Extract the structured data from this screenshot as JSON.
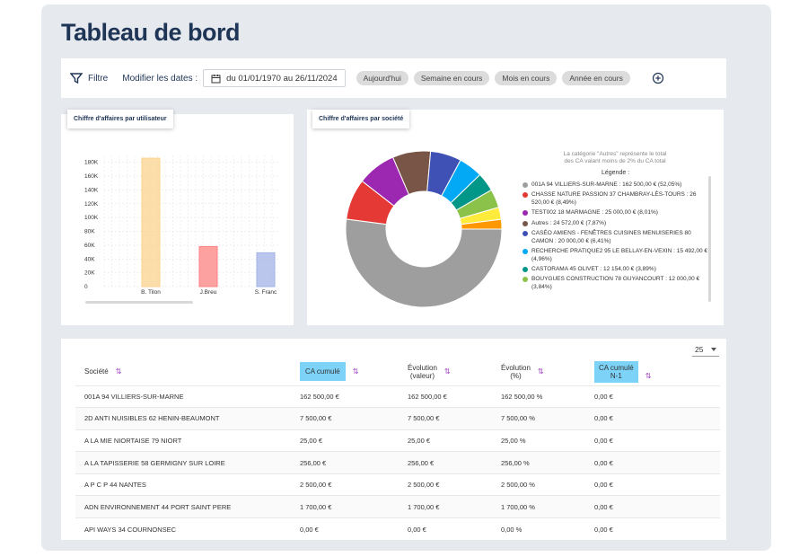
{
  "title": "Tableau de bord",
  "filter": {
    "filter_label": "Filtre",
    "dates_label": "Modifier les dates :",
    "date_range": "du 01/01/1970 au 26/11/2024",
    "chips": [
      "Aujourd'hui",
      "Semaine en cours",
      "Mois en cours",
      "Année en cours"
    ]
  },
  "bar_card": {
    "title": "Chiffre d'affaires par utilisateur"
  },
  "pie_card": {
    "title": "Chiffre d'affaires par société",
    "note_line1": "La catégorie \"Autres\" représente le total",
    "note_line2": "des CA valant moins de 2% du CA total",
    "legend_title": "Légende :",
    "legend": [
      {
        "label": "001A 94 VILLIERS-SUR-MARNE : 162 500,00 € (52,05%)",
        "color": "#9e9e9e"
      },
      {
        "label": "CHASSE NATURE PASSION 37 CHAMBRAY-LÈS-TOURS : 26 520,00 € (8,49%)",
        "color": "#e53935"
      },
      {
        "label": "TEST002 18 MARMAGNE : 25 000,00 € (8,01%)",
        "color": "#9c27b0"
      },
      {
        "label": "Autres : 24 572,00 € (7,87%)",
        "color": "#795548"
      },
      {
        "label": "CASÉO AMIENS - FENÊTRES CUISINES MENUISERIES 80 CAMON : 20 000,00 € (6,41%)",
        "color": "#3f51b5"
      },
      {
        "label": "RECHERCHE PRATIQUE2 95 LE BELLAY-EN-VEXIN : 15 492,00 € (4,96%)",
        "color": "#03a9f4"
      },
      {
        "label": "CASTORAMA 45 OLIVET : 12 154,00 € (3,89%)",
        "color": "#009688"
      },
      {
        "label": "BOUYGUES CONSTRUCTION 78 GUYANCOURT : 12 000,00 € (3,84%)",
        "color": "#8bc34a"
      }
    ]
  },
  "chart_data": [
    {
      "type": "bar",
      "categories": [
        "B. Tilon",
        "J.Breu",
        "S. Franc"
      ],
      "values": [
        186000,
        58000,
        49000
      ],
      "colors": [
        "#fbd38d",
        "#fc8181",
        "#a3b3e6"
      ],
      "yticks": [
        "0",
        "20K",
        "40K",
        "60K",
        "80K",
        "100K",
        "120K",
        "140K",
        "160K",
        "180K"
      ],
      "ylim": [
        0,
        190000
      ],
      "grid": true
    },
    {
      "type": "pie",
      "labels": [
        "001A 94 VILLIERS-SUR-MARNE",
        "CHASSE NATURE PASSION 37 CHAMBRAY-LÈS-TOURS",
        "TEST002 18 MARMAGNE",
        "Autres",
        "CASÉO AMIENS - FENÊTRES CUISINES MENUISERIES 80 CAMON",
        "RECHERCHE PRATIQUE2 95 LE BELLAY-EN-VEXIN",
        "CASTORAMA 45 OLIVET",
        "BOUYGUES CONSTRUCTION 78 GUYANCOURT",
        "",
        ""
      ],
      "values": [
        52.05,
        8.49,
        8.01,
        7.87,
        6.41,
        4.96,
        3.89,
        3.84,
        2.5,
        2.0
      ],
      "colors": [
        "#9e9e9e",
        "#e53935",
        "#9c27b0",
        "#795548",
        "#3f51b5",
        "#03a9f4",
        "#009688",
        "#8bc34a",
        "#ffeb3b",
        "#ff9800"
      ],
      "donut": true
    }
  ],
  "table": {
    "page_size": "25",
    "headers": [
      "Société",
      "CA cumulé",
      "Évolution (valeur)",
      "Évolution (%)",
      "CA cumulé N-1"
    ],
    "h_evol_val_1": "Évolution",
    "h_evol_val_2": "(valeur)",
    "h_evol_pct_1": "Évolution",
    "h_evol_pct_2": "(%)",
    "h_ca_n1_1": "CA cumulé",
    "h_ca_n1_2": "N-1",
    "rows": [
      [
        "001A 94 VILLIERS-SUR-MARNE",
        "162 500,00 €",
        "162 500,00 €",
        "162 500,00 %",
        "0,00 €"
      ],
      [
        "2D ANTI NUISIBLES 62 HENIN-BEAUMONT",
        "7 500,00 €",
        "7 500,00 €",
        "7 500,00 %",
        "0,00 €"
      ],
      [
        "A LA MIE NIORTAISE 79 NIORT",
        "25,00 €",
        "25,00 €",
        "25,00 %",
        "0,00 €"
      ],
      [
        "A LA TAPISSERIE 58 GERMIGNY SUR LOIRE",
        "256,00 €",
        "256,00 €",
        "256,00 %",
        "0,00 €"
      ],
      [
        "A P C P 44 NANTES",
        "2 500,00 €",
        "2 500,00 €",
        "2 500,00 %",
        "0,00 €"
      ],
      [
        "ADN ENVIRONNEMENT 44 PORT SAINT PERE",
        "1 700,00 €",
        "1 700,00 €",
        "1 700,00 %",
        "0,00 €"
      ],
      [
        "API WAYS 34 COURNONSEC",
        "0,00 €",
        "0,00 €",
        "0,00 %",
        "0,00 €"
      ]
    ]
  },
  "icons": [
    "filter-icon",
    "calendar-icon",
    "add-circle-icon",
    "sort-icon",
    "dropdown-arrow-icon"
  ],
  "colors": {
    "title": "#1f3556",
    "highlight": "#7dd3f7",
    "sort": "#a03fbf"
  }
}
